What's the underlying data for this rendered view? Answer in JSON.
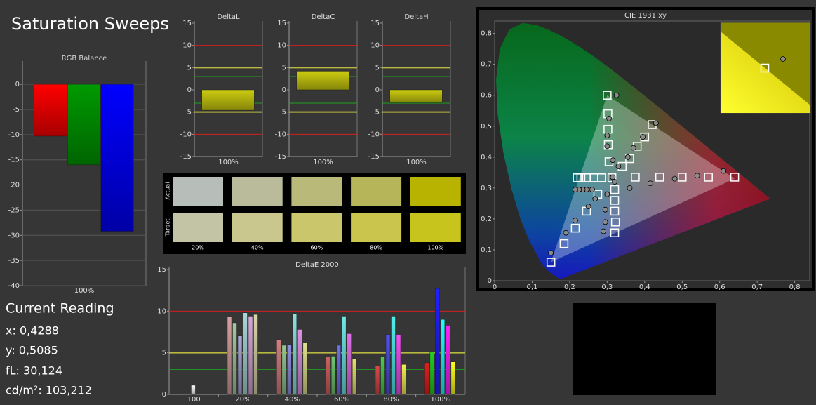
{
  "title": "Saturation Sweeps",
  "current_reading": {
    "title": "Current Reading",
    "lines": [
      "x: 0,4288",
      "y: 0,5085",
      "fL: 30,124",
      "cd/m²: 103,212"
    ]
  },
  "chart_data": [
    {
      "type": "bar",
      "title": "RGB Balance",
      "categories": [
        "100%"
      ],
      "series": [
        {
          "color": "#ff0000",
          "values": [
            -10.3
          ]
        },
        {
          "color": "#009a00",
          "values": [
            -16.0
          ]
        },
        {
          "color": "#0000ff",
          "values": [
            -29.2
          ]
        }
      ],
      "ylim": [
        -40,
        4.2
      ],
      "yticks": [
        0,
        -5,
        -10,
        -15,
        -20,
        -25,
        -30,
        -35,
        -40
      ],
      "grid": true
    },
    {
      "type": "bar",
      "title": "DeltaL",
      "categories": [
        "100%"
      ],
      "values": [
        -4.6
      ],
      "color": "#cccc10",
      "ylim": [
        -15,
        15
      ],
      "yticks": [
        15,
        10,
        5,
        0,
        -5,
        -10,
        -15
      ],
      "ref_lines": [
        {
          "value": 10,
          "color": "#d02020"
        },
        {
          "value": -10,
          "color": "#d02020"
        },
        {
          "value": 5,
          "color": "#b8b840"
        },
        {
          "value": -5,
          "color": "#b8b840"
        },
        {
          "value": 3,
          "color": "#20a020"
        },
        {
          "value": -3,
          "color": "#20a020"
        }
      ]
    },
    {
      "type": "bar",
      "title": "DeltaC",
      "categories": [
        "100%"
      ],
      "values": [
        4.2
      ],
      "color": "#cccc10",
      "ylim": [
        -15,
        15
      ],
      "yticks": [
        15,
        10,
        5,
        0,
        -5,
        -10,
        -15
      ],
      "ref_lines": [
        {
          "value": 10,
          "color": "#d02020"
        },
        {
          "value": -10,
          "color": "#d02020"
        },
        {
          "value": 5,
          "color": "#b8b840"
        },
        {
          "value": -5,
          "color": "#b8b840"
        },
        {
          "value": 3,
          "color": "#20a020"
        },
        {
          "value": -3,
          "color": "#20a020"
        }
      ]
    },
    {
      "type": "bar",
      "title": "DeltaH",
      "categories": [
        "100%"
      ],
      "values": [
        -2.9
      ],
      "color": "#cccc10",
      "ylim": [
        -15,
        15
      ],
      "yticks": [
        15,
        10,
        5,
        0,
        -5,
        -10,
        -15
      ],
      "ref_lines": [
        {
          "value": 10,
          "color": "#d02020"
        },
        {
          "value": -10,
          "color": "#d02020"
        },
        {
          "value": 5,
          "color": "#b8b840"
        },
        {
          "value": -5,
          "color": "#b8b840"
        },
        {
          "value": 3,
          "color": "#20a020"
        },
        {
          "value": -3,
          "color": "#20a020"
        }
      ]
    },
    {
      "type": "swatches",
      "row_labels": [
        "Actual",
        "Target"
      ],
      "columns": [
        "20%",
        "40%",
        "60%",
        "80%",
        "100%"
      ],
      "rows": [
        [
          "#b7bdb8",
          "#b9bb9a",
          "#b9b97a",
          "#b7b55a",
          "#b8b300"
        ],
        [
          "#c3c3a5",
          "#c9c78e",
          "#c9c66c",
          "#c9c54d",
          "#c8c41e"
        ]
      ]
    },
    {
      "type": "grouped_bar",
      "title": "DeltaE 2000",
      "categories": [
        "100",
        "20%",
        "40%",
        "60%",
        "80%",
        "100%"
      ],
      "ylim": [
        0,
        15
      ],
      "yticks": [
        0,
        5,
        10,
        15
      ],
      "ref_lines": [
        {
          "value": 10,
          "color": "#d02020"
        },
        {
          "value": 5,
          "color": "#b8b840"
        },
        {
          "value": 3,
          "color": "#20a020"
        }
      ],
      "series": [
        {
          "colors": [
            "#ffffff",
            null,
            null,
            null,
            null,
            null
          ],
          "values": [
            1.1,
            null,
            null,
            null,
            null,
            null
          ]
        },
        {
          "colors": [
            null,
            "#d8a0a0",
            "#d08080",
            "#d06060",
            "#d84848",
            "#e02020"
          ],
          "values": [
            null,
            9.3,
            6.6,
            4.5,
            3.4,
            3.8
          ]
        },
        {
          "colors": [
            null,
            "#a8c8a0",
            "#90c890",
            "#70c870",
            "#50c850",
            "#20d020"
          ],
          "values": [
            null,
            8.6,
            5.9,
            4.6,
            4.5,
            5.1
          ]
        },
        {
          "colors": [
            null,
            "#a8a8d8",
            "#9090e0",
            "#7070e8",
            "#5050f0",
            "#2020ff"
          ],
          "values": [
            null,
            7.1,
            6.0,
            5.9,
            7.2,
            12.7
          ]
        },
        {
          "colors": [
            null,
            "#a8d8d8",
            "#90e0e0",
            "#70e8e8",
            "#50f0f0",
            "#20ffff"
          ],
          "values": [
            null,
            9.8,
            9.7,
            9.4,
            9.4,
            9.0
          ]
        },
        {
          "colors": [
            null,
            "#d8a8d8",
            "#e090e0",
            "#e070e8",
            "#f050f0",
            "#ff20ff"
          ],
          "values": [
            null,
            9.4,
            7.8,
            7.3,
            7.2,
            8.3
          ]
        },
        {
          "colors": [
            null,
            "#d8d8a8",
            "#e0e090",
            "#e8e070",
            "#f0f050",
            "#ffff20"
          ],
          "values": [
            null,
            9.6,
            6.2,
            4.3,
            3.6,
            3.9
          ]
        }
      ]
    },
    {
      "type": "scatter",
      "title": "CIE 1931 xy",
      "xlim": [
        0,
        0.84
      ],
      "ylim": [
        0,
        0.84
      ],
      "xticks": [
        0,
        {
          "value": 0.1,
          "label": "0,1"
        },
        {
          "value": 0.2,
          "label": "0,2"
        },
        {
          "value": 0.3,
          "label": "0,3"
        },
        {
          "value": 0.4,
          "label": "0,4"
        },
        {
          "value": 0.5,
          "label": "0,5"
        },
        {
          "value": 0.6,
          "label": "0,6"
        },
        {
          "value": 0.7,
          "label": "0,7"
        },
        {
          "value": 0.8,
          "label": "0,8"
        }
      ],
      "yticks": [
        0,
        {
          "value": 0.1,
          "label": "0,1"
        },
        {
          "value": 0.2,
          "label": "0,2"
        },
        {
          "value": 0.3,
          "label": "0,3"
        },
        {
          "value": 0.4,
          "label": "0,4"
        },
        {
          "value": 0.5,
          "label": "0,5"
        },
        {
          "value": 0.6,
          "label": "0,6"
        },
        {
          "value": 0.7,
          "label": "0,7"
        },
        {
          "value": 0.8,
          "label": "0,8"
        }
      ],
      "gamut": {
        "x": [
          0.64,
          0.3,
          0.15
        ],
        "y": [
          0.33,
          0.6,
          0.06
        ]
      },
      "series": [
        {
          "marker": "square",
          "color": "#ffffff",
          "x": [
            0.3127,
            0.375,
            0.44,
            0.5,
            0.57,
            0.64,
            0.305,
            0.303,
            0.302,
            0.302,
            0.3,
            0.275,
            0.245,
            0.215,
            0.185,
            0.15,
            0.285,
            0.265,
            0.245,
            0.23,
            0.22,
            0.32,
            0.32,
            0.32,
            0.322,
            0.32,
            0.34,
            0.36,
            0.38,
            0.4,
            0.42
          ],
          "y": [
            0.333,
            0.335,
            0.335,
            0.335,
            0.335,
            0.335,
            0.385,
            0.44,
            0.49,
            0.54,
            0.6,
            0.28,
            0.225,
            0.17,
            0.12,
            0.06,
            0.333,
            0.333,
            0.333,
            0.333,
            0.333,
            0.295,
            0.26,
            0.225,
            0.19,
            0.155,
            0.37,
            0.395,
            0.435,
            0.465,
            0.505
          ]
        },
        {
          "marker": "circle",
          "color": "#8a8a8a",
          "x": [
            0.315,
            0.36,
            0.415,
            0.48,
            0.54,
            0.61,
            0.315,
            0.3,
            0.3,
            0.305,
            0.325,
            0.268,
            0.25,
            0.215,
            0.19,
            0.15,
            0.26,
            0.245,
            0.235,
            0.225,
            0.215,
            0.32,
            0.3,
            0.295,
            0.295,
            0.29,
            0.33,
            0.355,
            0.37,
            0.395,
            0.43
          ],
          "y": [
            0.335,
            0.3,
            0.315,
            0.33,
            0.34,
            0.355,
            0.39,
            0.435,
            0.47,
            0.525,
            0.6,
            0.265,
            0.24,
            0.195,
            0.155,
            0.09,
            0.295,
            0.295,
            0.295,
            0.295,
            0.295,
            0.32,
            0.28,
            0.23,
            0.19,
            0.16,
            0.37,
            0.4,
            0.43,
            0.465,
            0.51
          ]
        }
      ]
    }
  ]
}
